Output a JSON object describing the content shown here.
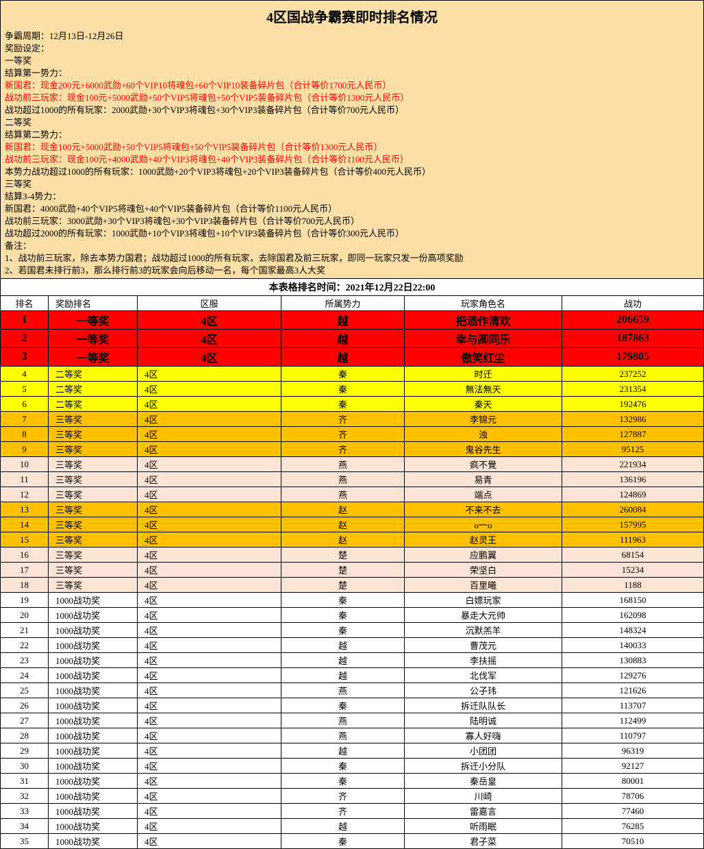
{
  "title": "4区国战争霸赛即时排名情况",
  "rules": [
    {
      "text": "争霸周期：12月13日-12月26日",
      "red": false
    },
    {
      "text": "奖励设定：",
      "red": false
    },
    {
      "text": "一等奖",
      "red": false
    },
    {
      "text": "结算第一势力：",
      "red": false
    },
    {
      "text": "新国君：现金200元+6000武勋+60个VIP10将魂包+60个VIP10装备碎片包（合计等价1700元人民币）",
      "red": true
    },
    {
      "text": "战功前三玩家：现金100元+5000武勋+50个VIP5将魂包+50个VIP5装备碎片包（合计等价1300元人民币）",
      "red": true
    },
    {
      "text": "战功超过1000的所有玩家：2000武勋+30个VIP3将魂包+30个VIP3装备碎片包（合计等价700元人民币）",
      "red": false
    },
    {
      "text": "二等奖",
      "red": false
    },
    {
      "text": "结算第二势力：",
      "red": false
    },
    {
      "text": "新国君：现金100元+5000武勋+50个VIP5将魂包+50个VIP5装备碎片包（合计等价1300元人民币）",
      "red": true
    },
    {
      "text": "战功前三玩家：现金100元+4000武勋+40个VIP3将魂包+40个VIP3装备碎片包（合计等价1100元人民币）",
      "red": true
    },
    {
      "text": "本势力战功超过1000的所有玩家：1000武勋+20个VIP3将魂包+20个VIP3装备碎片包（合计等价400元人民币）",
      "red": false
    },
    {
      "text": "三等奖",
      "red": false
    },
    {
      "text": "结算3-4势力：",
      "red": false
    },
    {
      "text": "新国君：4000武勋+40个VIP5将魂包+40个VIP5装备碎片包（合计等价1100元人民币）",
      "red": false
    },
    {
      "text": "战功前三玩家：3000武勋+30个VIP3将魂包+30个VIP3装备碎片包（合计等价700元人民币）",
      "red": false
    },
    {
      "text": "战功超过2000的所有玩家：1000武勋+10个VIP3将魂包+10个VIP3装备碎片包（合计等价300元人民币）",
      "red": false
    },
    {
      "text": "备注：",
      "red": false
    },
    {
      "text": "1、战功前三玩家，除去本势力国君；战功超过1000的所有玩家，去除国君及前三玩家，即同一玩家只发一份高项奖励",
      "red": false
    },
    {
      "text": "2、若国君未排行前3，那么排行前3的玩家会向后移动一名，每个国家最高3人大奖",
      "red": false
    }
  ],
  "timestamp": "本表格排名时间：2021年12月22日22:00",
  "headers": {
    "rank": "排名",
    "prize": "奖励排名",
    "zone": "区服",
    "faction": "所属势力",
    "name": "玩家角色名",
    "score": "战功"
  },
  "rows": [
    {
      "rank": 1,
      "prize": "一等奖",
      "zone": "4区",
      "faction": "越",
      "name": "把酒作清欢",
      "score": 206659,
      "tier": "first"
    },
    {
      "rank": 2,
      "prize": "一等奖",
      "zone": "4区",
      "faction": "越",
      "name": "幸与卿同乐",
      "score": 187863,
      "tier": "first"
    },
    {
      "rank": 3,
      "prize": "一等奖",
      "zone": "4区",
      "faction": "越",
      "name": "傲笑红尘",
      "score": 179805,
      "tier": "first"
    },
    {
      "rank": 4,
      "prize": "二等奖",
      "zone": "4区",
      "faction": "秦",
      "name": "时迁",
      "score": 237252,
      "tier": "second"
    },
    {
      "rank": 5,
      "prize": "二等奖",
      "zone": "4区",
      "faction": "秦",
      "name": "無法無天",
      "score": 231354,
      "tier": "second"
    },
    {
      "rank": 6,
      "prize": "二等奖",
      "zone": "4区",
      "faction": "秦",
      "name": "秦天",
      "score": 192476,
      "tier": "second"
    },
    {
      "rank": 7,
      "prize": "三等奖",
      "zone": "4区",
      "faction": "齐",
      "name": "李锦元",
      "score": 132986,
      "tier": "third-a"
    },
    {
      "rank": 8,
      "prize": "三等奖",
      "zone": "4区",
      "faction": "齐",
      "name": "浊",
      "score": 127887,
      "tier": "third-a"
    },
    {
      "rank": 9,
      "prize": "三等奖",
      "zone": "4区",
      "faction": "齐",
      "name": "鬼谷先生",
      "score": 95125,
      "tier": "third-a"
    },
    {
      "rank": 10,
      "prize": "三等奖",
      "zone": "4区",
      "faction": "燕",
      "name": "疯不覺",
      "score": 221934,
      "tier": "third-b"
    },
    {
      "rank": 11,
      "prize": "三等奖",
      "zone": "4区",
      "faction": "燕",
      "name": "易青",
      "score": 136196,
      "tier": "third-b"
    },
    {
      "rank": 12,
      "prize": "三等奖",
      "zone": "4区",
      "faction": "燕",
      "name": "端点",
      "score": 124869,
      "tier": "third-b"
    },
    {
      "rank": 13,
      "prize": "三等奖",
      "zone": "4区",
      "faction": "赵",
      "name": "不来不去",
      "score": 260084,
      "tier": "third-a"
    },
    {
      "rank": 14,
      "prize": "三等奖",
      "zone": "4区",
      "faction": "赵",
      "name": "o一o",
      "score": 157995,
      "tier": "third-a"
    },
    {
      "rank": 15,
      "prize": "三等奖",
      "zone": "4区",
      "faction": "赵",
      "name": "赵灵王",
      "score": 111963,
      "tier": "third-a"
    },
    {
      "rank": 16,
      "prize": "三等奖",
      "zone": "4区",
      "faction": "楚",
      "name": "应鹏翼",
      "score": 68154,
      "tier": "third-b"
    },
    {
      "rank": 17,
      "prize": "三等奖",
      "zone": "4区",
      "faction": "楚",
      "name": "荣坚白",
      "score": 15234,
      "tier": "third-b"
    },
    {
      "rank": 18,
      "prize": "三等奖",
      "zone": "4区",
      "faction": "楚",
      "name": "百里曦",
      "score": 1188,
      "tier": "third-b"
    },
    {
      "rank": 19,
      "prize": "1000战功奖",
      "zone": "4区",
      "faction": "秦",
      "name": "白嫖玩家",
      "score": 168150,
      "tier": "none"
    },
    {
      "rank": 20,
      "prize": "1000战功奖",
      "zone": "4区",
      "faction": "秦",
      "name": "暴走大元帅",
      "score": 162098,
      "tier": "none"
    },
    {
      "rank": 21,
      "prize": "1000战功奖",
      "zone": "4区",
      "faction": "秦",
      "name": "沉默羔羊",
      "score": 148324,
      "tier": "none"
    },
    {
      "rank": 22,
      "prize": "1000战功奖",
      "zone": "4区",
      "faction": "越",
      "name": "曹茂元",
      "score": 140033,
      "tier": "none"
    },
    {
      "rank": 23,
      "prize": "1000战功奖",
      "zone": "4区",
      "faction": "越",
      "name": "李扶摇",
      "score": 130883,
      "tier": "none"
    },
    {
      "rank": 24,
      "prize": "1000战功奖",
      "zone": "4区",
      "faction": "越",
      "name": "北伐军",
      "score": 129276,
      "tier": "none"
    },
    {
      "rank": 25,
      "prize": "1000战功奖",
      "zone": "4区",
      "faction": "燕",
      "name": "公子玮",
      "score": 121626,
      "tier": "none"
    },
    {
      "rank": 26,
      "prize": "1000战功奖",
      "zone": "4区",
      "faction": "秦",
      "name": "拆迁队队长",
      "score": 113707,
      "tier": "none"
    },
    {
      "rank": 27,
      "prize": "1000战功奖",
      "zone": "4区",
      "faction": "燕",
      "name": "陆明诚",
      "score": 112499,
      "tier": "none"
    },
    {
      "rank": 28,
      "prize": "1000战功奖",
      "zone": "4区",
      "faction": "燕",
      "name": "寡人好嗨",
      "score": 110797,
      "tier": "none"
    },
    {
      "rank": 29,
      "prize": "1000战功奖",
      "zone": "4区",
      "faction": "越",
      "name": "小团团",
      "score": 96319,
      "tier": "none"
    },
    {
      "rank": 30,
      "prize": "1000战功奖",
      "zone": "4区",
      "faction": "秦",
      "name": "拆迁小分队",
      "score": 92127,
      "tier": "none"
    },
    {
      "rank": 31,
      "prize": "1000战功奖",
      "zone": "4区",
      "faction": "秦",
      "name": "秦岳皇",
      "score": 80001,
      "tier": "none"
    },
    {
      "rank": 32,
      "prize": "1000战功奖",
      "zone": "4区",
      "faction": "齐",
      "name": "川崎",
      "score": 78706,
      "tier": "none"
    },
    {
      "rank": 33,
      "prize": "1000战功奖",
      "zone": "4区",
      "faction": "齐",
      "name": "雷嘉言",
      "score": 77460,
      "tier": "none"
    },
    {
      "rank": 34,
      "prize": "1000战功奖",
      "zone": "4区",
      "faction": "越",
      "name": "听雨眠",
      "score": 76285,
      "tier": "none"
    },
    {
      "rank": 35,
      "prize": "1000战功奖",
      "zone": "4区",
      "faction": "秦",
      "name": "君子菜",
      "score": 70510,
      "tier": "none"
    }
  ]
}
